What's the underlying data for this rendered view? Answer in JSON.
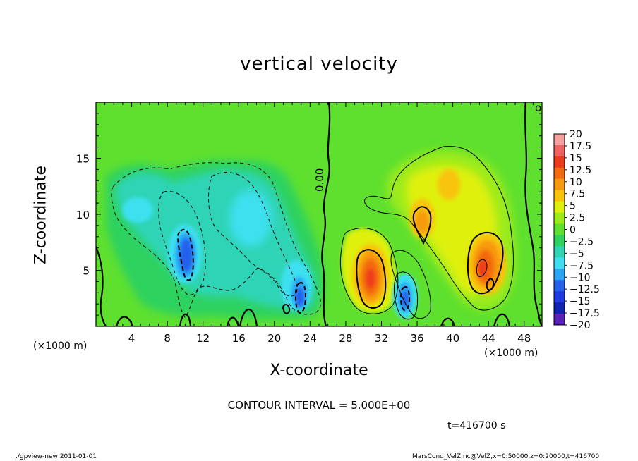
{
  "chart_data": {
    "type": "heatmap",
    "title": "vertical velocity",
    "xlabel": "X-coordinate",
    "ylabel": "Z-coordinate",
    "xunit_left": "(×1000 m)",
    "xunit_right": "(×1000 m)",
    "xlim": [
      0,
      50
    ],
    "ylim": [
      0,
      20
    ],
    "x_ticks": [
      4,
      8,
      12,
      16,
      20,
      24,
      28,
      32,
      36,
      40,
      44,
      48
    ],
    "y_ticks": [
      5,
      10,
      15
    ],
    "contour_label": "0.00",
    "contour_interval": "CONTOUR INTERVAL = 5.000E+00",
    "time_label": "t=416700 s",
    "colorbar": {
      "labels": [
        "20",
        "17.5",
        "15",
        "12.5",
        "10",
        "7.5",
        "5",
        "2.5",
        "0",
        "−2.5",
        "−5",
        "−7.5",
        "−10",
        "−12.5",
        "−15",
        "−17.5",
        "−20"
      ],
      "colors": [
        "#f7a0a0",
        "#f06262",
        "#ee3a1c",
        "#f36b0c",
        "#f79a10",
        "#f8c40c",
        "#dff00a",
        "#9ceb1a",
        "#5fe02e",
        "#2ed25e",
        "#2fd4b5",
        "#3ee0ef",
        "#2aa6f5",
        "#2460ec",
        "#1f3ae0",
        "#1020b0",
        "#5a22b4"
      ]
    },
    "features": [
      {
        "sign": "positive",
        "x": 30.5,
        "z": 4.5,
        "peak": 13
      },
      {
        "sign": "positive",
        "x": 36.5,
        "z": 9.5,
        "peak": 9
      },
      {
        "sign": "positive",
        "x": 43.0,
        "z": 5.5,
        "peak": 12
      },
      {
        "sign": "negative",
        "x": 10.0,
        "z": 6.5,
        "peak": -9
      },
      {
        "sign": "negative",
        "x": 23.0,
        "z": 2.8,
        "peak": -8
      },
      {
        "sign": "negative",
        "x": 34.0,
        "z": 2.5,
        "peak": -9
      }
    ]
  },
  "footer": {
    "left": "./gpview-new   2011-01-01",
    "right": "MarsCond_VelZ.nc@VelZ,x=0:50000,z=0:20000,t=416700"
  }
}
